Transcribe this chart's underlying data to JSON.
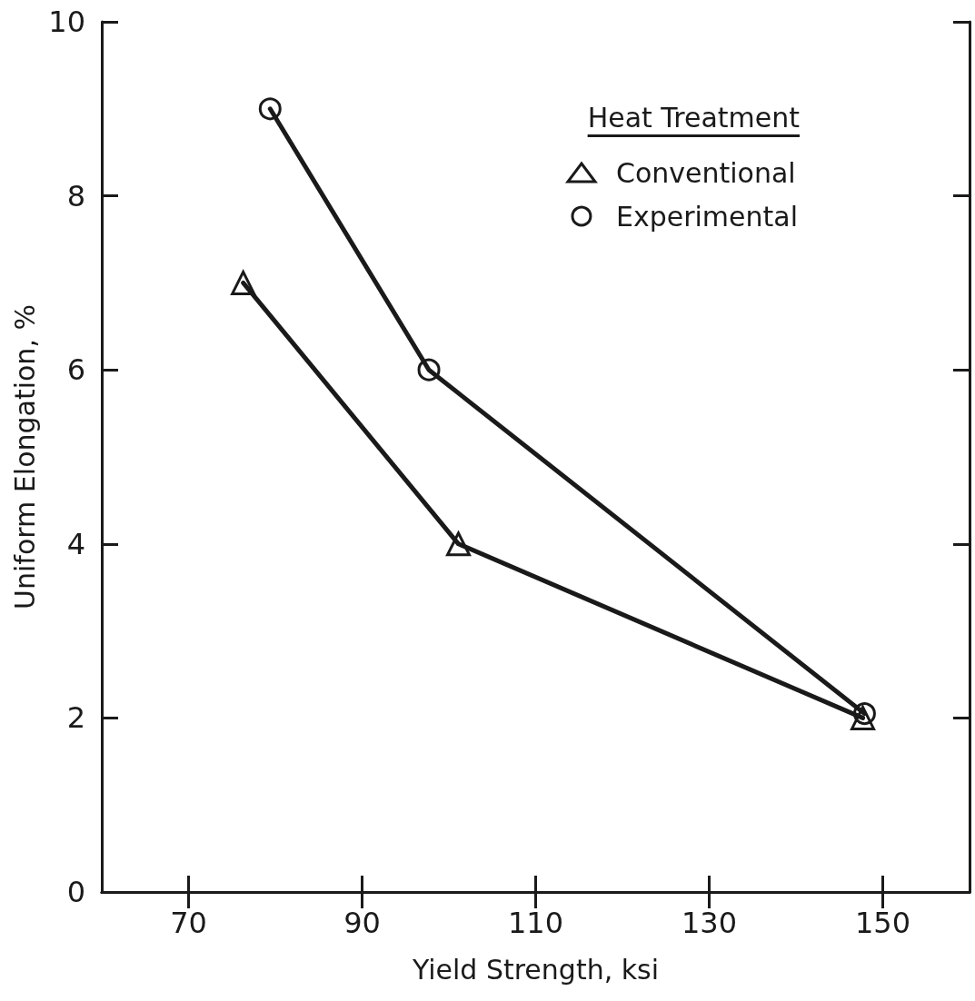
{
  "chart_data": {
    "type": "line",
    "xlabel": "Yield Strength, ksi",
    "ylabel": "Uniform Elongation, %",
    "legend_title": "Heat Treatment",
    "xlim": [
      60,
      160
    ],
    "xticks": [
      70,
      90,
      110,
      130,
      150
    ],
    "ylim": [
      0,
      10
    ],
    "yticks": [
      0,
      2,
      4,
      6,
      8,
      10
    ],
    "grid": false,
    "legend": "top right",
    "series": [
      {
        "name": "Conventional",
        "color": "#1a1a1a",
        "marker": "triangle",
        "x": [
          76.3,
          101.1,
          147.7
        ],
        "values": [
          7,
          4,
          2
        ]
      },
      {
        "name": "Experimental",
        "color": "#1a1a1a",
        "marker": "circle",
        "x": [
          79.4,
          97.7,
          147.9
        ],
        "values": [
          9,
          6,
          2.05
        ]
      }
    ]
  }
}
